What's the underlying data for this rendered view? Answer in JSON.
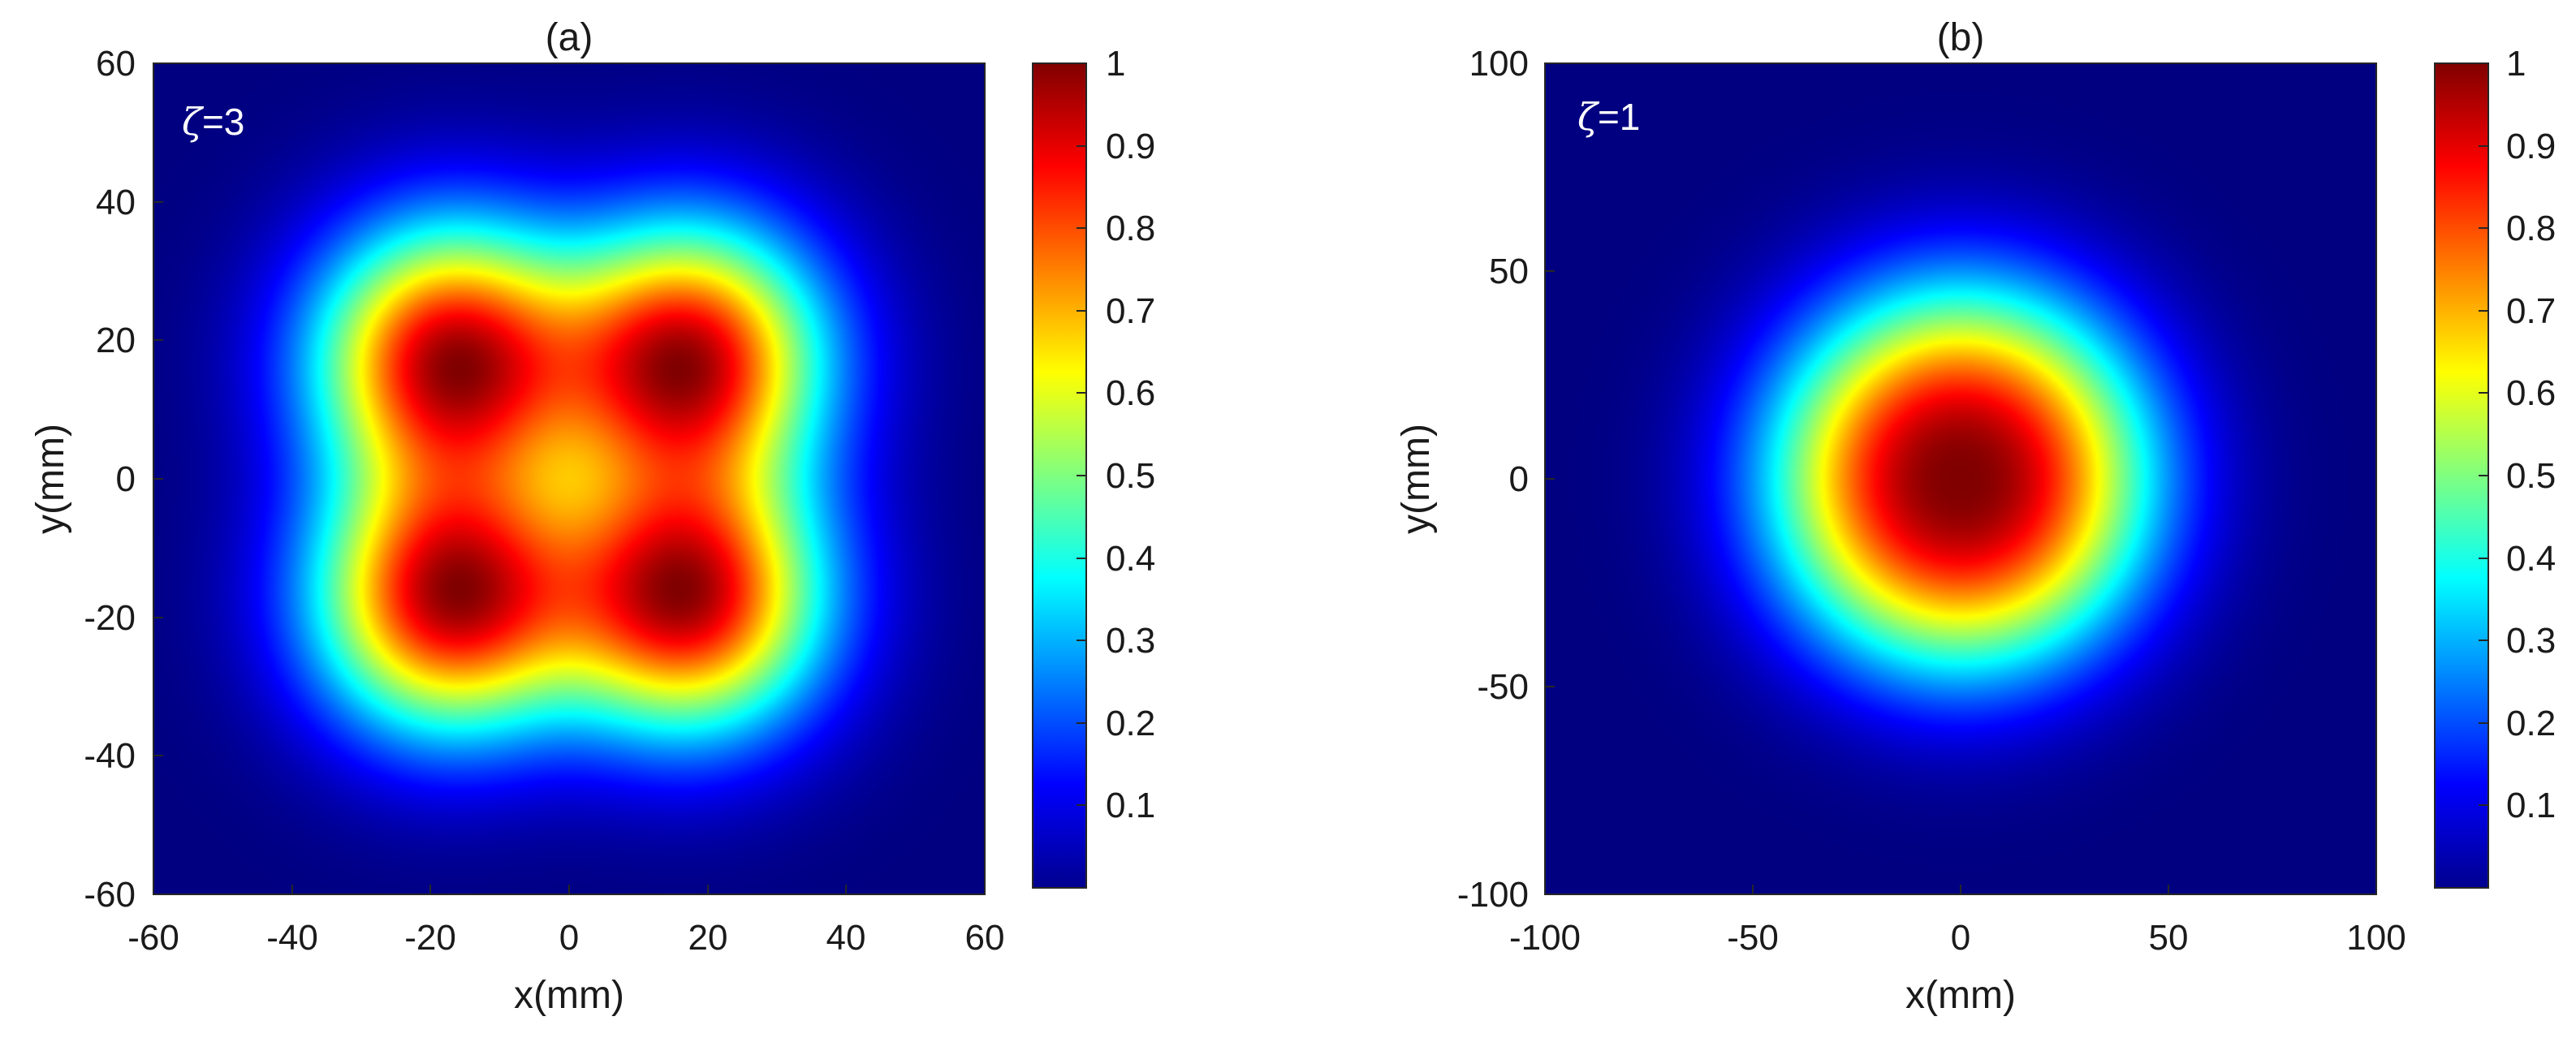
{
  "chart_data": [
    {
      "type": "heatmap",
      "title": "(a)",
      "xlabel": "x(mm)",
      "ylabel": "y(mm)",
      "xlim": [
        -60,
        60
      ],
      "ylim": [
        -60,
        60
      ],
      "xticks": [
        -60,
        -40,
        -20,
        0,
        20,
        40,
        60
      ],
      "yticks": [
        -60,
        -40,
        -20,
        0,
        20,
        40,
        60
      ],
      "annotation_symbol": "ζ",
      "annotation_value": "=3",
      "colormap": "jet",
      "clim": [
        0,
        1
      ],
      "colorbar_ticks": [
        0.1,
        0.2,
        0.3,
        0.4,
        0.5,
        0.6,
        0.7,
        0.8,
        0.9,
        1
      ],
      "colorbar_ticklabels": [
        "0.1",
        "0.2",
        "0.3",
        "0.4",
        "0.5",
        "0.6",
        "0.7",
        "0.8",
        "0.9",
        "1"
      ],
      "peaks": [
        {
          "x": -17,
          "y": 17,
          "value": 1.0
        },
        {
          "x": 17,
          "y": 17,
          "value": 1.0
        },
        {
          "x": -17,
          "y": -17,
          "value": 1.0
        },
        {
          "x": 17,
          "y": -17,
          "value": 1.0
        }
      ],
      "center_value": 0.65,
      "peak_width_mm": 18
    },
    {
      "type": "heatmap",
      "title": "(b)",
      "xlabel": "x(mm)",
      "ylabel": "y(mm)",
      "xlim": [
        -100,
        100
      ],
      "ylim": [
        -100,
        100
      ],
      "xticks": [
        -100,
        -50,
        0,
        50,
        100
      ],
      "yticks": [
        -100,
        -50,
        0,
        50,
        100
      ],
      "annotation_symbol": "ζ",
      "annotation_value": "=1",
      "colormap": "jet",
      "clim": [
        0,
        1
      ],
      "colorbar_ticks": [
        0.1,
        0.2,
        0.3,
        0.4,
        0.5,
        0.6,
        0.7,
        0.8,
        0.9,
        1
      ],
      "colorbar_ticklabels": [
        "0.1",
        "0.2",
        "0.3",
        "0.4",
        "0.5",
        "0.6",
        "0.7",
        "0.8",
        "0.9",
        "1"
      ],
      "peaks": [
        {
          "x": 0,
          "y": 0,
          "value": 1.0
        }
      ],
      "peak_width_mm": 42
    }
  ]
}
